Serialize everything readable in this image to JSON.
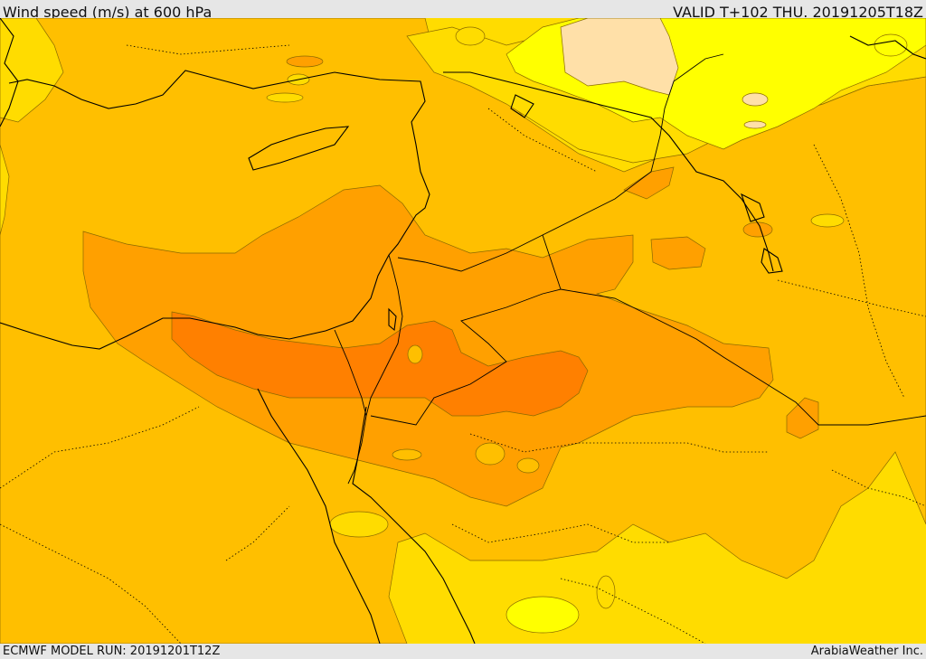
{
  "header": {
    "title": "Wind speed (m/s) at 600 hPa",
    "valid_time": "VALID T+102 THU. 20191205T18Z"
  },
  "footer": {
    "model_run": "ECMWF MODEL RUN: 20191201T12Z",
    "credit": "ArabiaWeather Inc."
  },
  "palette": {
    "band_very_light": "#ffe0a8",
    "band_light_yellow": "#ffff00",
    "band_yellow": "#ffdc00",
    "band_gold": "#ffbf00",
    "band_orange": "#ffa000",
    "band_dark_orange": "#ff8000",
    "contour_line": "#8a6a00",
    "coastline": "#000000"
  }
}
